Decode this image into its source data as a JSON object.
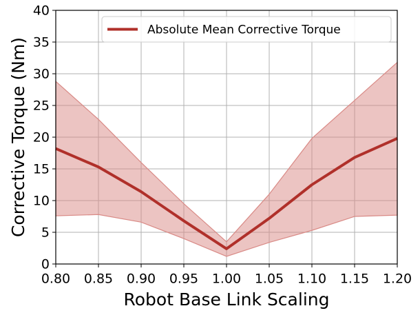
{
  "chart_data": {
    "type": "line",
    "xlabel": "Robot Base Link Scaling",
    "ylabel": "Corrective Torque (Nm)",
    "x": [
      0.8,
      0.85,
      0.9,
      0.95,
      1.0,
      1.05,
      1.1,
      1.15,
      1.2
    ],
    "series": [
      {
        "name": "Absolute Mean Corrective Torque",
        "color": "#b0302a",
        "band_color": "#d98a86",
        "values": [
          18.2,
          15.3,
          11.4,
          6.8,
          2.4,
          7.2,
          12.5,
          16.8,
          19.8
        ],
        "upper": [
          28.8,
          22.8,
          16.0,
          9.5,
          3.5,
          11.0,
          19.8,
          25.8,
          31.8
        ],
        "lower": [
          7.6,
          7.8,
          6.6,
          4.0,
          1.2,
          3.4,
          5.3,
          7.5,
          7.7
        ]
      }
    ],
    "xlim": [
      0.8,
      1.2
    ],
    "xticks": [
      {
        "value": 0.8,
        "label": "0.80"
      },
      {
        "value": 0.85,
        "label": "0.85"
      },
      {
        "value": 0.9,
        "label": "0.90"
      },
      {
        "value": 0.95,
        "label": "0.95"
      },
      {
        "value": 1.0,
        "label": "1.00"
      },
      {
        "value": 1.05,
        "label": "1.05"
      },
      {
        "value": 1.1,
        "label": "1.10"
      },
      {
        "value": 1.15,
        "label": "1.15"
      },
      {
        "value": 1.2,
        "label": "1.20"
      }
    ],
    "ylim": [
      0,
      40
    ],
    "yticks": [
      0,
      5,
      10,
      15,
      20,
      25,
      30,
      35,
      40
    ],
    "grid": true,
    "legend": "upper right"
  }
}
